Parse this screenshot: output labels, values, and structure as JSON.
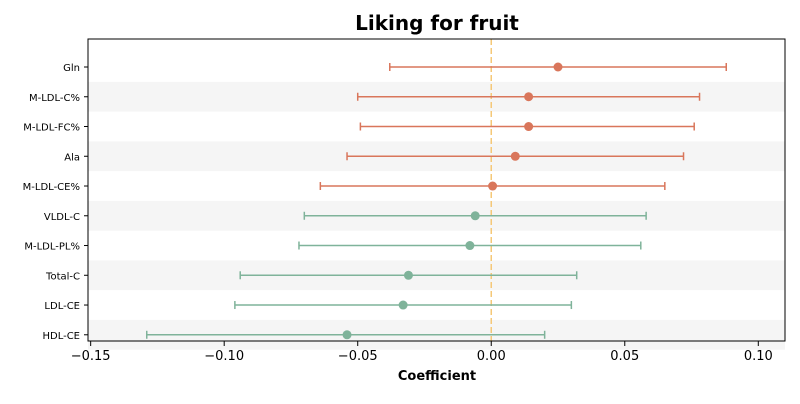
{
  "chart_data": {
    "type": "forest",
    "title": "Liking for fruit",
    "xlabel": "Coefficient",
    "ylabel": "",
    "xlim": [
      -0.151,
      0.11
    ],
    "xticks": [
      -0.15,
      -0.1,
      -0.05,
      0.0,
      0.05,
      0.1
    ],
    "xtick_labels": [
      "−0.15",
      "−0.10",
      "−0.05",
      "0.00",
      "0.05",
      "0.10"
    ],
    "reference_line": 0.0,
    "colors": {
      "positive": "#d9765b",
      "negative": "#7fb39a",
      "reference": "#f5c877",
      "band": "#f5f5f5"
    },
    "rows": [
      {
        "label": "Gln",
        "coef": 0.025,
        "lo": -0.038,
        "hi": 0.088
      },
      {
        "label": "M-LDL-C%",
        "coef": 0.014,
        "lo": -0.05,
        "hi": 0.078
      },
      {
        "label": "M-LDL-FC%",
        "coef": 0.014,
        "lo": -0.049,
        "hi": 0.076
      },
      {
        "label": "Ala",
        "coef": 0.009,
        "lo": -0.054,
        "hi": 0.072
      },
      {
        "label": "M-LDL-CE%",
        "coef": 0.0005,
        "lo": -0.064,
        "hi": 0.065
      },
      {
        "label": "VLDL-C",
        "coef": -0.006,
        "lo": -0.07,
        "hi": 0.058
      },
      {
        "label": "M-LDL-PL%",
        "coef": -0.008,
        "lo": -0.072,
        "hi": 0.056
      },
      {
        "label": "Total-C",
        "coef": -0.031,
        "lo": -0.094,
        "hi": 0.032
      },
      {
        "label": "LDL-CE",
        "coef": -0.033,
        "lo": -0.096,
        "hi": 0.03
      },
      {
        "label": "HDL-CE",
        "coef": -0.054,
        "lo": -0.129,
        "hi": 0.02
      }
    ]
  }
}
